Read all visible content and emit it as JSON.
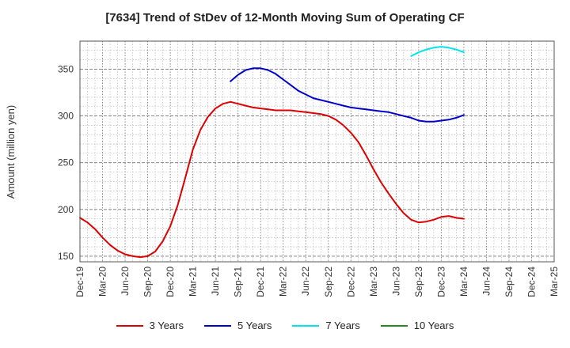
{
  "chart_data": {
    "type": "line",
    "title": "[7634]  Trend of StDev of 12-Month Moving Sum of Operating CF",
    "xlabel": "",
    "ylabel": "Amount (million yen)",
    "ylim": [
      144,
      380
    ],
    "yticks": [
      150,
      200,
      250,
      300,
      350
    ],
    "x_range": [
      "2019-12",
      "2025-03"
    ],
    "x_tick_labels": [
      "Dec-19",
      "Mar-20",
      "Jun-20",
      "Sep-20",
      "Dec-20",
      "Mar-21",
      "Jun-21",
      "Sep-21",
      "Dec-21",
      "Mar-22",
      "Jun-22",
      "Sep-22",
      "Dec-22",
      "Mar-23",
      "Jun-23",
      "Sep-23",
      "Dec-23",
      "Mar-24",
      "Jun-24",
      "Sep-24",
      "Dec-24",
      "Mar-25"
    ],
    "grid": true,
    "legend_position": "bottom",
    "series": [
      {
        "name": "3 Years",
        "color": "#dd0000",
        "x": [
          "2019-12",
          "2020-01",
          "2020-02",
          "2020-03",
          "2020-04",
          "2020-05",
          "2020-06",
          "2020-07",
          "2020-08",
          "2020-09",
          "2020-10",
          "2020-11",
          "2020-12",
          "2021-01",
          "2021-02",
          "2021-03",
          "2021-04",
          "2021-05",
          "2021-06",
          "2021-07",
          "2021-08",
          "2021-09",
          "2021-10",
          "2021-11",
          "2021-12",
          "2022-01",
          "2022-02",
          "2022-03",
          "2022-04",
          "2022-05",
          "2022-06",
          "2022-07",
          "2022-08",
          "2022-09",
          "2022-10",
          "2022-11",
          "2022-12",
          "2023-01",
          "2023-02",
          "2023-03",
          "2023-04",
          "2023-05",
          "2023-06",
          "2023-07",
          "2023-08",
          "2023-09",
          "2023-10",
          "2023-11",
          "2023-12",
          "2024-01",
          "2024-02",
          "2024-03"
        ],
        "values": [
          191,
          186,
          179,
          170,
          162,
          156,
          152,
          150,
          149,
          150,
          155,
          166,
          182,
          205,
          234,
          264,
          285,
          299,
          308,
          313,
          315,
          313,
          311,
          309,
          308,
          307,
          306,
          306,
          306,
          305,
          304,
          303,
          302,
          300,
          296,
          290,
          282,
          272,
          258,
          243,
          229,
          217,
          206,
          196,
          189,
          186,
          187,
          189,
          192,
          193,
          191,
          190
        ]
      },
      {
        "name": "5 Years",
        "color": "#0000cc",
        "x": [
          "2021-08",
          "2021-09",
          "2021-10",
          "2021-11",
          "2021-12",
          "2022-01",
          "2022-02",
          "2022-03",
          "2022-04",
          "2022-05",
          "2022-06",
          "2022-07",
          "2022-08",
          "2022-09",
          "2022-10",
          "2022-11",
          "2022-12",
          "2023-01",
          "2023-02",
          "2023-03",
          "2023-04",
          "2023-05",
          "2023-06",
          "2023-07",
          "2023-08",
          "2023-09",
          "2023-10",
          "2023-11",
          "2023-12",
          "2024-01",
          "2024-02",
          "2024-03"
        ],
        "values": [
          337,
          344,
          349,
          351,
          351,
          349,
          345,
          339,
          333,
          327,
          323,
          319,
          317,
          315,
          313,
          311,
          309,
          308,
          307,
          306,
          305,
          304,
          302,
          300,
          298,
          295,
          294,
          294,
          295,
          296,
          298,
          301
        ]
      },
      {
        "name": "7 Years",
        "color": "#00e5ee",
        "x": [
          "2023-08",
          "2023-09",
          "2023-10",
          "2023-11",
          "2023-12",
          "2024-01",
          "2024-02",
          "2024-03"
        ],
        "values": [
          364,
          368,
          371,
          373,
          374,
          373,
          371,
          368
        ]
      },
      {
        "name": "10 Years",
        "color": "#228b22",
        "x": [],
        "values": []
      }
    ]
  }
}
